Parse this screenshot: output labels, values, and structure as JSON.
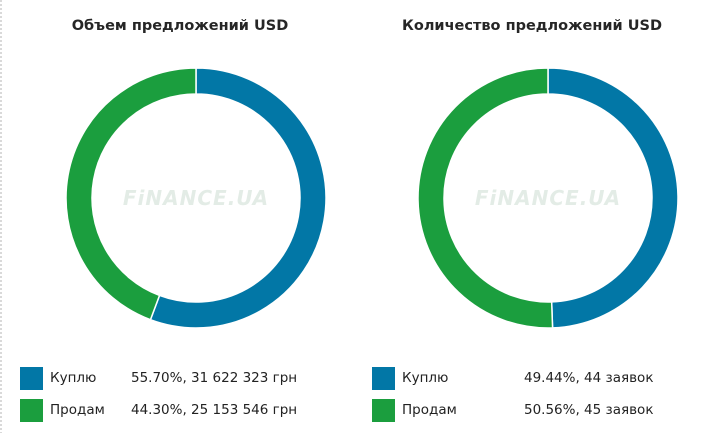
{
  "chart_data": [
    {
      "type": "pie",
      "title": "Объем предложений USD",
      "slices": [
        {
          "name": "Куплю",
          "percent": 55.7,
          "value_label": "55.70%, 31 622 323 грн",
          "color": "#0277a6"
        },
        {
          "name": "Продам",
          "percent": 44.3,
          "value_label": "44.30%, 25 153 546 грн",
          "color": "#1b9e3e"
        }
      ]
    },
    {
      "type": "pie",
      "title": "Количество предложений USD",
      "slices": [
        {
          "name": "Куплю",
          "percent": 49.44,
          "value_label": "49.44%, 44 заявок",
          "color": "#0277a6"
        },
        {
          "name": "Продам",
          "percent": 50.56,
          "value_label": "50.56%, 45 заявок",
          "color": "#1b9e3e"
        }
      ]
    }
  ],
  "watermark": {
    "text": "FiNANCE.UA"
  }
}
